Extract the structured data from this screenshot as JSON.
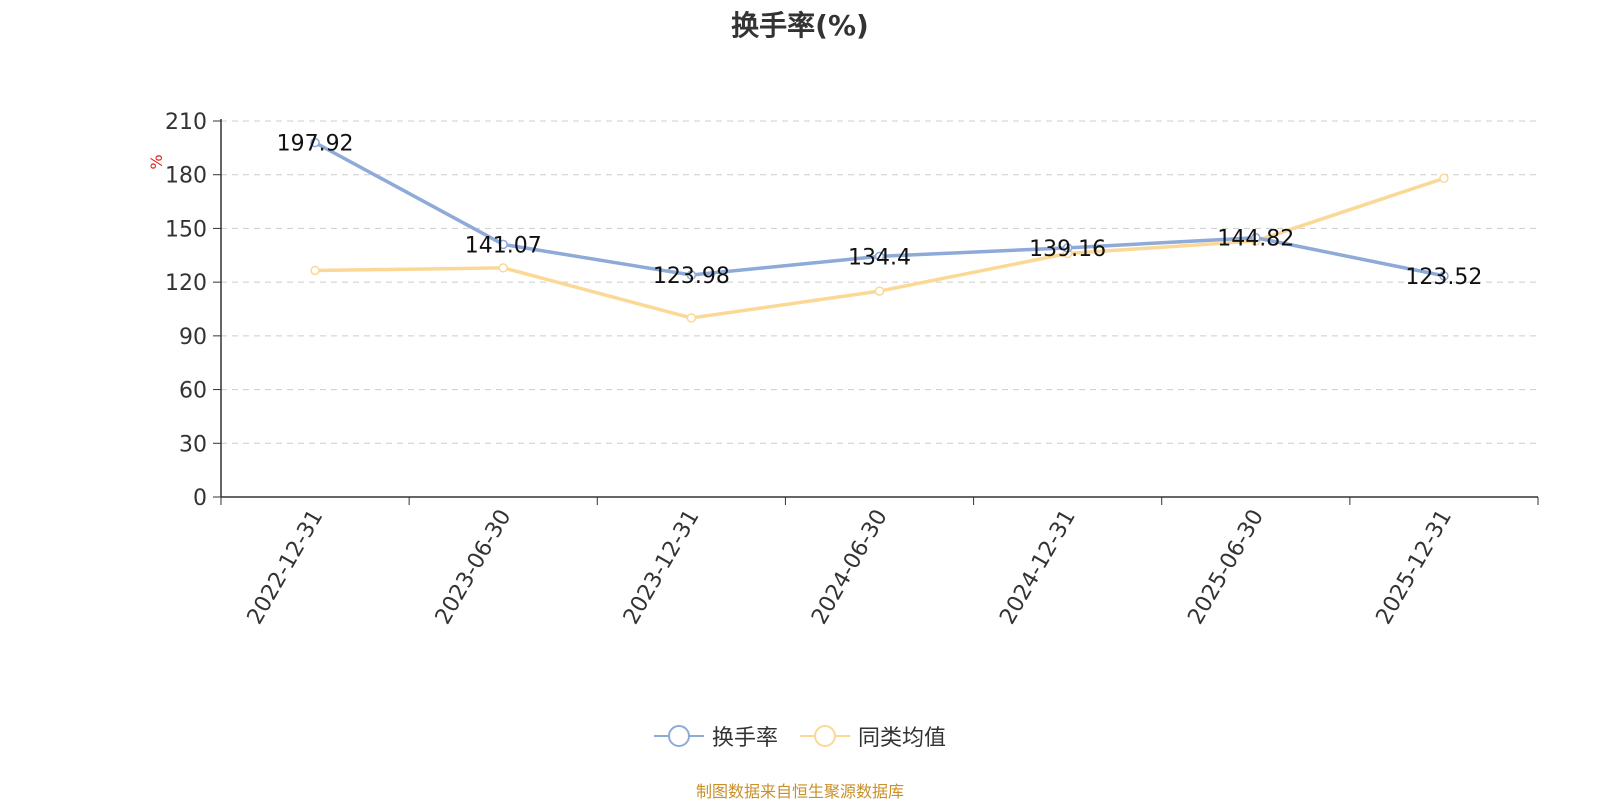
{
  "title": "换手率(%)",
  "source": "制图数据来自恒生聚源数据库",
  "colors": {
    "series1": "#8eaad8",
    "series2": "#fcd896",
    "ylabel": "#e02020",
    "grid": "#cccccc",
    "axis": "#333333"
  },
  "chart_data": {
    "type": "line",
    "title": "换手率(%)",
    "ylabel": "%",
    "xlabel": "",
    "ylim": [
      0,
      210
    ],
    "yticks": [
      0,
      30,
      60,
      90,
      120,
      150,
      180,
      210
    ],
    "categories": [
      "2022-12-31",
      "2023-06-30",
      "2023-12-31",
      "2024-06-30",
      "2024-12-31",
      "2025-06-30",
      "2025-12-31"
    ],
    "grid": true,
    "legend_position": "bottom-center",
    "series": [
      {
        "name": "换手率",
        "values": [
          197.92,
          141.07,
          123.98,
          134.4,
          139.16,
          144.82,
          123.52
        ],
        "labels": [
          "197.92",
          "141.07",
          "123.98",
          "134.4",
          "139.16",
          "144.82",
          "123.52"
        ]
      },
      {
        "name": "同类均值",
        "values": [
          126.5,
          128.0,
          100.0,
          115.0,
          136.0,
          143.0,
          178.0
        ]
      }
    ]
  }
}
